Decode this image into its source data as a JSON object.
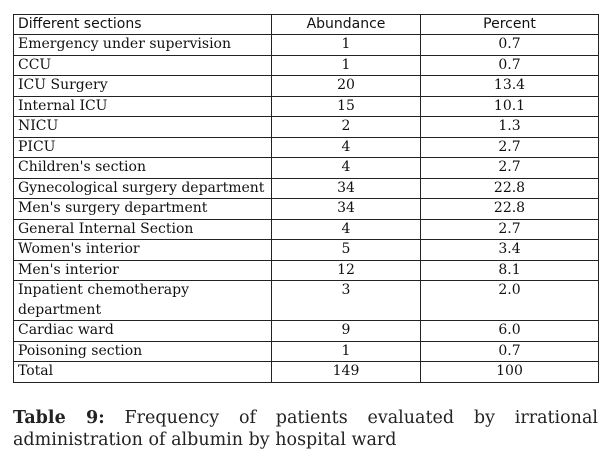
{
  "table": {
    "headers": [
      "Different sections",
      "Abundance",
      "Percent"
    ],
    "rows": [
      [
        "Emergency under supervision",
        "1",
        "0.7"
      ],
      [
        "CCU",
        "1",
        "0.7"
      ],
      [
        "ICU Surgery",
        "20",
        "13.4"
      ],
      [
        "Internal ICU",
        "15",
        "10.1"
      ],
      [
        "NICU",
        "2",
        "1.3"
      ],
      [
        "PICU",
        "4",
        "2.7"
      ],
      [
        "Children's section",
        "4",
        "2.7"
      ],
      [
        "Gynecological surgery department",
        "34",
        "22.8"
      ],
      [
        "Men's surgery department",
        "34",
        "22.8"
      ],
      [
        "General Internal Section",
        "4",
        "2.7"
      ],
      [
        "Women's interior",
        "5",
        "3.4"
      ],
      [
        "Men's interior",
        "12",
        "8.1"
      ],
      [
        "Inpatient chemotherapy department",
        "3",
        "2.0"
      ],
      [
        "Cardiac ward",
        "9",
        "6.0"
      ],
      [
        "Poisoning section",
        "1",
        "0.7"
      ],
      [
        "Total",
        "149",
        "100"
      ]
    ]
  },
  "caption": {
    "label": "Table 9:",
    "text": "Frequency of patients evaluated by irrational administration of albumin by hospital ward"
  }
}
